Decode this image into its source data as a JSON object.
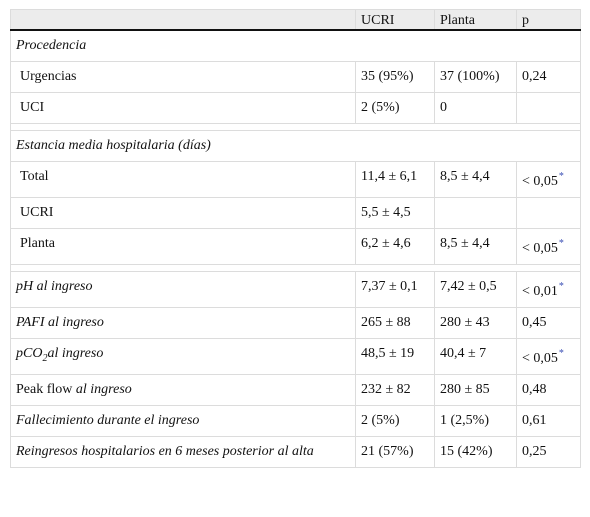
{
  "header": {
    "c0": "",
    "c1": "UCRI",
    "c2": "Planta",
    "c3": "p"
  },
  "procedencia": {
    "title": "Procedencia",
    "urgencias": {
      "label": "Urgencias",
      "ucri": "35 (95%)",
      "planta": "37 (100%)",
      "p": "0,24"
    },
    "uci": {
      "label": "UCI",
      "ucri": "2 (5%)",
      "planta": "0",
      "p": ""
    }
  },
  "estancia": {
    "title": "Estancia media hospitalaria (días)",
    "total": {
      "label": "Total",
      "ucri": "11,4 ± 6,1",
      "planta": "8,5 ± 4,4",
      "p": "< 0,05"
    },
    "ucri_row": {
      "label": "UCRI",
      "ucri": "5,5 ± 4,5",
      "planta": "",
      "p": ""
    },
    "planta_row": {
      "label": "Planta",
      "ucri": "6,2 ± 4,6",
      "planta": "8,5 ± 4,4",
      "p": "< 0,05"
    }
  },
  "ph": {
    "label": "pH al ingreso",
    "ucri": "7,37 ± 0,1",
    "planta": "7,42 ± 0,5",
    "p": "< 0,01"
  },
  "pafi": {
    "label": "PAFI al ingreso",
    "ucri": "265 ± 88",
    "planta": "280 ± 43",
    "p": "0,45"
  },
  "pco2": {
    "label_pre": "pCO",
    "label_sub": "2",
    "label_post": "al ingreso",
    "ucri": "48,5 ± 19",
    "planta": "40,4 ± 7",
    "p": "< 0,05"
  },
  "peak": {
    "label_pre": "Peak flow",
    "label_post": "al ingreso",
    "ucri": "232 ± 82",
    "planta": "280 ± 85",
    "p": "0,48"
  },
  "fallecimiento": {
    "label": "Fallecimiento durante el ingreso",
    "ucri": "2 (5%)",
    "planta": "1 (2,5%)",
    "p": "0,61"
  },
  "reingresos": {
    "label": "Reingresos hospitalarios en 6 meses posterior al alta",
    "ucri": "21 (57%)",
    "planta": "15 (42%)",
    "p": "0,25"
  },
  "footnote_marker": "*"
}
